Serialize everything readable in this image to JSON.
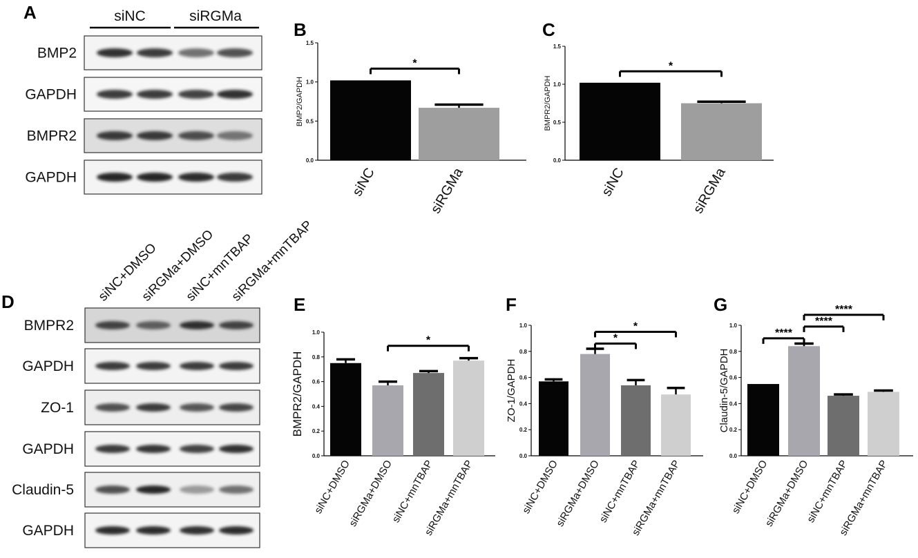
{
  "panels": {
    "A": "A",
    "B": "B",
    "C": "C",
    "D": "D",
    "E": "E",
    "F": "F",
    "G": "G"
  },
  "blot_a": {
    "groups": [
      "siNC",
      "siRGMa"
    ],
    "rows": [
      "BMP2",
      "GAPDH",
      "BMPR2",
      "GAPDH"
    ]
  },
  "blot_d": {
    "lanes": [
      "siNC+DMSO",
      "siRGMa+DMSO",
      "siNC+mnTBAP",
      "siRGMa+mnTBAP"
    ],
    "rows": [
      "BMPR2",
      "GAPDH",
      "ZO-1",
      "GAPDH",
      "Claudin-5",
      "GAPDH"
    ]
  },
  "chart_data": [
    {
      "panel": "B",
      "type": "bar",
      "categories": [
        "siNC",
        "siRGMa"
      ],
      "values": [
        1.02,
        0.67
      ],
      "errors": [
        0,
        0.04
      ],
      "colors": [
        "#050505",
        "#9e9e9e"
      ],
      "ylabel": "BMP2/GAPDH",
      "ylim": [
        0,
        1.5
      ],
      "yticks": [
        "0.0",
        "0.5",
        "1.0",
        "1.5"
      ],
      "comparisons": [
        {
          "from": 0,
          "to": 1,
          "label": "*"
        }
      ]
    },
    {
      "panel": "C",
      "type": "bar",
      "categories": [
        "siNC",
        "siRGMa"
      ],
      "values": [
        1.02,
        0.75
      ],
      "errors": [
        0,
        0.02
      ],
      "colors": [
        "#050505",
        "#9e9e9e"
      ],
      "ylabel": "BMPR2/GAPDH",
      "ylim": [
        0,
        1.5
      ],
      "yticks": [
        "0.0",
        "0.5",
        "1.0",
        "1.5"
      ],
      "comparisons": [
        {
          "from": 0,
          "to": 1,
          "label": "*"
        }
      ]
    },
    {
      "panel": "E",
      "type": "bar",
      "categories": [
        "siNC+DMSO",
        "siRGMa+DMSO",
        "siNC+mnTBAP",
        "siRGMa+mnTBAP"
      ],
      "values": [
        0.75,
        0.57,
        0.67,
        0.77
      ],
      "errors": [
        0.03,
        0.03,
        0.015,
        0.02
      ],
      "colors": [
        "#050505",
        "#a7a7ad",
        "#6e6e6e",
        "#cfcfcf"
      ],
      "ylabel": "BMPR2/GAPDH",
      "ylim": [
        0,
        1.0
      ],
      "yticks": [
        "0.0",
        "0.2",
        "0.4",
        "0.6",
        "0.8",
        "1.0"
      ],
      "comparisons": [
        {
          "from": 1,
          "to": 3,
          "label": "*"
        }
      ]
    },
    {
      "panel": "F",
      "type": "bar",
      "categories": [
        "siNC+DMSO",
        "siRGMa+DMSO",
        "siNC+mnTBAP",
        "siRGMa+mnTBAP"
      ],
      "values": [
        0.57,
        0.78,
        0.54,
        0.47
      ],
      "errors": [
        0.015,
        0.04,
        0.04,
        0.05
      ],
      "colors": [
        "#050505",
        "#a7a7ad",
        "#6e6e6e",
        "#cfcfcf"
      ],
      "ylabel": "ZO-1/GAPDH",
      "ylim": [
        0,
        1.0
      ],
      "yticks": [
        "0.0",
        "0.2",
        "0.4",
        "0.6",
        "0.8",
        "1.0"
      ],
      "comparisons": [
        {
          "from": 1,
          "to": 2,
          "label": "*"
        },
        {
          "from": 1,
          "to": 3,
          "label": "*"
        }
      ]
    },
    {
      "panel": "G",
      "type": "bar",
      "categories": [
        "siNC+DMSO",
        "siRGMa+DMSO",
        "siNC+mnTBAP",
        "siRGMa+mnTBAP"
      ],
      "values": [
        0.55,
        0.84,
        0.46,
        0.49
      ],
      "errors": [
        0,
        0.02,
        0.01,
        0.01
      ],
      "colors": [
        "#050505",
        "#a7a7ad",
        "#6e6e6e",
        "#cfcfcf"
      ],
      "ylabel": "Claudin-5/GAPDH",
      "ylim": [
        0,
        1.0
      ],
      "yticks": [
        "0.0",
        "0.2",
        "0.4",
        "0.6",
        "0.8",
        "1.0"
      ],
      "comparisons": [
        {
          "from": 0,
          "to": 1,
          "label": "****"
        },
        {
          "from": 1,
          "to": 2,
          "label": "****"
        },
        {
          "from": 1,
          "to": 3,
          "label": "****"
        }
      ]
    }
  ]
}
